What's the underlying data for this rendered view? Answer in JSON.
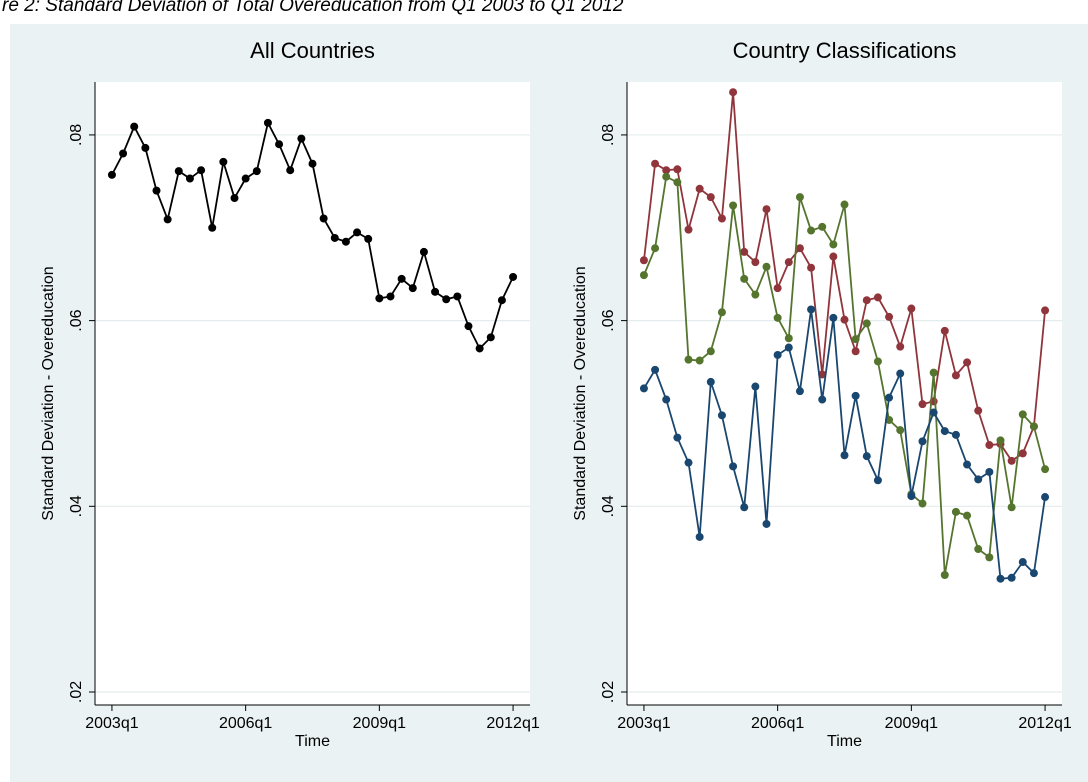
{
  "title": "re 2: Standard Deviation of Total Overeducation from Q1 2003 to Q1 2012",
  "chart_data": [
    {
      "type": "line",
      "title": "All Countries",
      "xlabel": "Time",
      "ylabel": "Standard Deviation - Overeducation",
      "x": [
        2003,
        2003.25,
        2003.5,
        2003.75,
        2004,
        2004.25,
        2004.5,
        2004.75,
        2005,
        2005.25,
        2005.5,
        2005.75,
        2006,
        2006.25,
        2006.5,
        2006.75,
        2007,
        2007.25,
        2007.5,
        2007.75,
        2008,
        2008.25,
        2008.5,
        2008.75,
        2009,
        2009.25,
        2009.5,
        2009.75,
        2010,
        2010.25,
        2010.5,
        2010.75,
        2011,
        2011.25,
        2011.5,
        2011.75,
        2012
      ],
      "series": [
        {
          "color": "#000000",
          "values": [
            0.0757,
            0.078,
            0.0809,
            0.0786,
            0.074,
            0.0709,
            0.0761,
            0.0753,
            0.0762,
            0.07,
            0.0771,
            0.0732,
            0.0753,
            0.0761,
            0.0813,
            0.079,
            0.0762,
            0.0796,
            0.0769,
            0.071,
            0.0689,
            0.0685,
            0.0695,
            0.0688,
            0.0624,
            0.0626,
            0.0645,
            0.0635,
            0.0674,
            0.0631,
            0.0623,
            0.0626,
            0.0594,
            0.057,
            0.0582,
            0.0622,
            0.0647
          ]
        }
      ],
      "xlim": [
        2002.62,
        2012.38
      ],
      "xticks": [
        {
          "value": 2003,
          "label": "2003q1"
        },
        {
          "value": 2006,
          "label": "2006q1"
        },
        {
          "value": 2009,
          "label": "2009q1"
        },
        {
          "value": 2012,
          "label": "2012q1"
        }
      ],
      "ylim": [
        0.0186,
        0.0857
      ],
      "yticks": [
        {
          "value": 0.02,
          "label": ".02"
        },
        {
          "value": 0.04,
          "label": ".04"
        },
        {
          "value": 0.06,
          "label": ".06"
        },
        {
          "value": 0.08,
          "label": ".08"
        }
      ],
      "grid": true
    },
    {
      "type": "line",
      "title": "Country Classifications",
      "xlabel": "Time",
      "ylabel": "Standard Deviation - Overeducation",
      "x": [
        2003,
        2003.25,
        2003.5,
        2003.75,
        2004,
        2004.25,
        2004.5,
        2004.75,
        2005,
        2005.25,
        2005.5,
        2005.75,
        2006,
        2006.25,
        2006.5,
        2006.75,
        2007,
        2007.25,
        2007.5,
        2007.75,
        2008,
        2008.25,
        2008.5,
        2008.75,
        2009,
        2009.25,
        2009.5,
        2009.75,
        2010,
        2010.25,
        2010.5,
        2010.75,
        2011,
        2011.25,
        2011.5,
        2011.75,
        2012
      ],
      "series": [
        {
          "color": "#90353b",
          "values": [
            0.0665,
            0.0769,
            0.0762,
            0.0763,
            0.0698,
            0.0742,
            0.0733,
            0.071,
            0.0846,
            0.0674,
            0.0663,
            0.072,
            0.0635,
            0.0663,
            0.0678,
            0.0657,
            0.0542,
            0.0669,
            0.0601,
            0.0567,
            0.0622,
            0.0625,
            0.0604,
            0.0572,
            0.0613,
            0.051,
            0.0513,
            0.0589,
            0.0541,
            0.0555,
            0.0503,
            0.0466,
            0.0467,
            0.0449,
            0.0457,
            0.0486,
            0.0611
          ]
        },
        {
          "color": "#55752f",
          "values": [
            0.0649,
            0.0678,
            0.0755,
            0.0749,
            0.0558,
            0.0557,
            0.0567,
            0.0609,
            0.0724,
            0.0645,
            0.0628,
            0.0658,
            0.0603,
            0.0581,
            0.0733,
            0.0697,
            0.0701,
            0.0682,
            0.0725,
            0.058,
            0.0597,
            0.0556,
            0.0493,
            0.0482,
            0.0413,
            0.0403,
            0.0544,
            0.0326,
            0.0394,
            0.039,
            0.0354,
            0.0345,
            0.0471,
            0.0399,
            0.0499,
            0.0486,
            0.044
          ]
        },
        {
          "color": "#1a476f",
          "values": [
            0.0527,
            0.0547,
            0.0515,
            0.0474,
            0.0447,
            0.0367,
            0.0534,
            0.0498,
            0.0443,
            0.0399,
            0.0529,
            0.0381,
            0.0563,
            0.0571,
            0.0524,
            0.0612,
            0.0515,
            0.0603,
            0.0455,
            0.0519,
            0.0454,
            0.0428,
            0.0517,
            0.0543,
            0.0411,
            0.047,
            0.0501,
            0.0481,
            0.0477,
            0.0445,
            0.0429,
            0.0437,
            0.0322,
            0.0323,
            0.034,
            0.0328,
            0.041
          ]
        }
      ],
      "xlim": [
        2002.62,
        2012.38
      ],
      "xticks": [
        {
          "value": 2003,
          "label": "2003q1"
        },
        {
          "value": 2006,
          "label": "2006q1"
        },
        {
          "value": 2009,
          "label": "2009q1"
        },
        {
          "value": 2012,
          "label": "2012q1"
        }
      ],
      "ylim": [
        0.0186,
        0.0857
      ],
      "yticks": [
        {
          "value": 0.02,
          "label": ".02"
        },
        {
          "value": 0.04,
          "label": ".04"
        },
        {
          "value": 0.06,
          "label": ".06"
        },
        {
          "value": 0.08,
          "label": ".08"
        }
      ],
      "grid": true
    }
  ]
}
